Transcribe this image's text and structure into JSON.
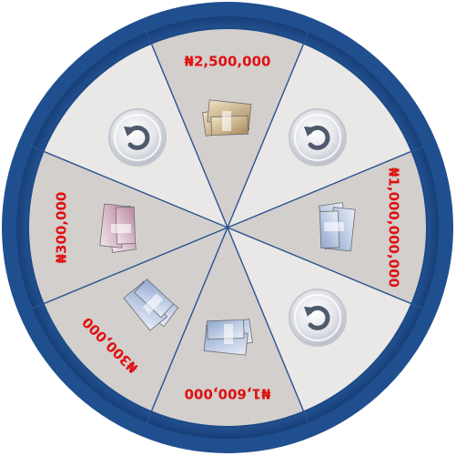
{
  "wheel": {
    "colors": {
      "rim_outer": "#1f4f8f",
      "rim_inner": "#3a6fb5",
      "segment_dark": "#d2cfcd",
      "segment_light": "#e9e8e7",
      "divider": "#2a5390",
      "prize_text": "#e01010"
    },
    "segments": [
      {
        "kind": "prize",
        "label": "₦2,500,000",
        "icon": "cash-stack-icon"
      },
      {
        "kind": "retry",
        "label": "",
        "icon": "retry-icon"
      },
      {
        "kind": "prize",
        "label": "₦1,000,000,000",
        "icon": "cash-stack-icon"
      },
      {
        "kind": "retry",
        "label": "",
        "icon": "retry-icon"
      },
      {
        "kind": "prize",
        "label": "₦1,600,000",
        "icon": "cash-stack-icon"
      },
      {
        "kind": "prize",
        "label": "₦300,000",
        "icon": "cash-stack-icon"
      },
      {
        "kind": "prize",
        "label": "₦300,000",
        "icon": "cash-stack-icon"
      },
      {
        "kind": "retry",
        "label": "",
        "icon": "retry-icon"
      }
    ]
  }
}
